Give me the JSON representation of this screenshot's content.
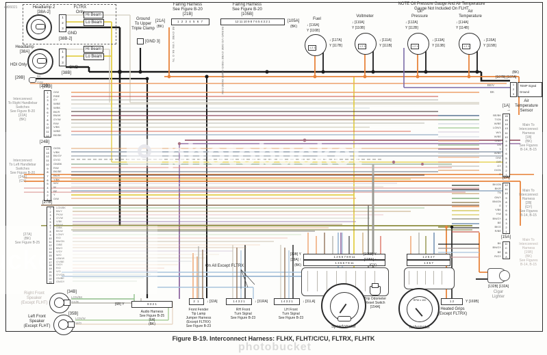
{
  "doc_code": "ed06021",
  "caption": "Figure B-19. Interconnect Harness: FLHX, FLHT/C/CU, FLTRX, FLHTK",
  "note": "NOTE Oil Pressure Gauge And Air Temperature\nGauge Not Included On FLHT",
  "watermark": {
    "brand": "photobucket",
    "partial_left": "photobucket",
    "partial_bottom": "photobucket"
  },
  "palette": {
    "wire_orange": "#e8833a",
    "wire_yellow": "#e8d44d",
    "wire_black": "#1a1a1a",
    "wire_violet": "#7a4b8f",
    "wire_maroon": "#8f4a5e",
    "wire_blue": "#5a7ea6",
    "wire_green": "#6a9e5f",
    "wire_tan": "#c9a878",
    "wire_gray": "#b0aea8"
  },
  "headlamps": {
    "h2": {
      "title": "Headlamp 2\n[38A-2]",
      "variant": "FLTRX\nOnly",
      "hi": "Hi Beam",
      "lo": "Lo Beam",
      "gnd": "GND",
      "gnd_conn": "[38B-2]",
      "pins": [
        "1",
        "2",
        "3"
      ],
      "w1": "W",
      "w2": "Y",
      "w3": "BK"
    },
    "h1": {
      "title": "Headlamp\n[38A]",
      "variant": "HDI Only",
      "hi": "Hi Beam",
      "lo": "Lo Beam",
      "gnd": "GND",
      "gnd_conn": "[38B]",
      "pins": [
        "1",
        "2",
        "3"
      ],
      "w1": "W",
      "w2": "Y",
      "w3": "BK"
    },
    "c29b": "[29B]",
    "c29b_w1": "BK",
    "c29b_w2": "O/W",
    "c22b_ref": "[22B]"
  },
  "ground_clamp": {
    "label": "Ground\nTo Upper\nTriple Clamp",
    "gnd": "[GND 3]"
  },
  "fairing21": {
    "title": "Fairing Harness\nSee Figure B-20\n[21B]",
    "mate": "[21A]",
    "mate_color": "(BK)",
    "pins": "1 2 3 4 5 6 7",
    "wires": [
      "BE",
      "GY/BE",
      "V",
      "BN",
      "BK",
      "O",
      "TN"
    ]
  },
  "fairing105": {
    "title": "Fairing Harness\nSee Figure B-20\n[105B]",
    "mate": "[105A]",
    "mate_color": "(BK)",
    "pins": "12 11 10 9 8 7 6 5 4 3 2 1",
    "wires": [
      "BK",
      "BN/O",
      "V/O",
      "O/BE",
      "GY/BE",
      "Y",
      "BE/O",
      "GN/BE",
      "BK",
      "BE",
      "O",
      "BN"
    ]
  },
  "gauges": {
    "pins": "1 2 3",
    "fuel": {
      "name": "Fuel",
      "a": "↓ [116A]",
      "b": "Y [116B]",
      "sub_a": "↓ [117A]",
      "sub_b": "Y [117B]"
    },
    "volt": {
      "name": "Voltmeter",
      "a": "↓ [110A]",
      "b": "Y [110B]",
      "sub_a": "↓ [111A]",
      "sub_b": "Y [111B]"
    },
    "oil": {
      "name": "Oil\nPressure",
      "a": "↓ [112A]",
      "b": "Y [112B]",
      "sub_a": "↓ [113A]",
      "sub_b": "Y [113B]"
    },
    "air": {
      "name": "Air\nTemperature",
      "a": "↓ [114A]",
      "b": "Y [114B]",
      "sub_a": "↓ [115A]",
      "sub_b": "Y [115B]"
    }
  },
  "temp_sensor": {
    "bk": "(BK)",
    "conns": "[107B]  [107A]",
    "rows": "TEMP Signal\nGround",
    "pins": [
      "1",
      "2",
      "3"
    ],
    "name": "Air\nTemperature\nSensor",
    "w1": "BE/V",
    "w2": "BK"
  },
  "right": {
    "c1": {
      "top": "[1A]",
      "pins": [
        "16",
        "15",
        "14",
        "13",
        "11",
        "10",
        "9",
        "8",
        "7",
        "6",
        "5",
        "4",
        "3",
        "2",
        "1"
      ],
      "wires": [
        "BE/BK",
        "T/GN",
        "W/BE",
        "LGN/V",
        "W/V",
        "W/BE",
        "O/BE",
        "GN",
        "V",
        "W/BK",
        "O/W",
        "O/R",
        "GY",
        "O/GN",
        "O"
      ],
      "desc": "Main To\nInterconnect\nHarness\n[1B]\n(BK)\nSee Figures\nB-14, B-15"
    },
    "c2": {
      "top": "[2A]",
      "pins": [
        "12",
        "11",
        "10",
        "9",
        "8",
        "7",
        "6",
        "5",
        "4",
        "3",
        "2",
        "1"
      ],
      "wires": [
        "BK/GN",
        "BK/R",
        "TN",
        "GN/Y",
        "BN/GN",
        "O",
        "Y/BK",
        "Y/W",
        "BN/GY",
        "BE",
        "BK/O",
        "R/BE"
      ],
      "desc": "Main To\nInterconnect\nHarness\n[2B]\n(GY)\nSee Figures\nB-14, B-15"
    },
    "c15": {
      "top": "[15A]",
      "pins": [
        "D",
        "C",
        "B",
        "A"
      ],
      "wires": [
        "BK",
        "BN/GY",
        "BE",
        "R/GY"
      ],
      "desc": "Main To\nInterconnect\nHarness\n[15B]\n(BK)\nSee Figures\nB-14, B-15"
    },
    "cigar": {
      "conns": "[132B]  [132A]",
      "name": "Cigar\nLighter"
    }
  },
  "left": {
    "c22": {
      "top": "[22B]",
      "pins": [
        "1",
        "2",
        "3",
        "4",
        "5",
        "6",
        "7",
        "8",
        "9",
        "10",
        "11",
        "12"
      ],
      "wires": [
        "O/W",
        "R/BE",
        "GY",
        "W/BE",
        "W/BK",
        "BK/R",
        "BN/W",
        "GY/W",
        "R/W",
        "V/BK",
        "W/BE",
        "BE/BK"
      ],
      "desc": "Interconnect\nTo Right Handlebar\nSwitches\nSee Figure B-20\n[22A]\n(BK)"
    },
    "c24": {
      "top": "[24B]",
      "pins": [
        "14",
        "13",
        "12",
        "11",
        "10",
        "9",
        "8",
        "7",
        "6",
        "5",
        "4",
        "3",
        "2",
        "1"
      ],
      "wires": [
        "O/GN",
        "V/BK",
        "BK/GY",
        "GY/O",
        "GN/BK",
        "R/W",
        "BK/BE",
        "BK/R",
        "Y/BK",
        "W/V",
        "W",
        "BE",
        "Y",
        "O/W"
      ],
      "desc": "Interconnect\nTo Left Handlebar\nSwitches\nSee Figure B-20\n[24A]\n(GY)"
    },
    "c27": {
      "top": "[27B]",
      "pins": [
        "1",
        "2",
        "3",
        "4",
        "5",
        "6",
        "7",
        "8",
        "9",
        "10",
        "11",
        "12",
        "13",
        "14",
        "15",
        "16",
        "17",
        "18",
        "19",
        "20",
        "21",
        "22",
        "23"
      ],
      "wires": [
        "LGN/BK",
        "BN/Y",
        "PK/W",
        "GY/W",
        "V/BK",
        "BN/W",
        "O/BK",
        "BK/W",
        "LGN/Y",
        "R/O",
        "BN/GN",
        "O/BE",
        "BN/O",
        "V/GY",
        "W/O",
        "LBN/W",
        "GY/BE",
        "O/GY",
        "R/O",
        "V/O",
        "GY/GN",
        "GN/BE",
        "GN/GY"
      ],
      "desc": "[27A]\n(BK)\nSee Figure B-25"
    }
  },
  "bottom": {
    "speaker_r": {
      "name": "Right Front\nSpeaker\n(Except FLHT)",
      "conn": "[34B]",
      "w1": "LGN/BK",
      "w2": "GY/R"
    },
    "speaker_l": {
      "name": "Left Front\nSpeaker\n(Except FLHT)",
      "conn": "[35B]",
      "w1": "LGN/W",
      "w2": "W/O"
    },
    "audio": {
      "conn": "[6B]  Y",
      "pins": "8          3 2 1",
      "desc": "Audio Harness\nSee Figure B-25\n[6A]\n(BK)"
    },
    "fender": {
      "pins": "2 1",
      "conn": "↓ [32A]",
      "desc": "Front Fender\nTip Lamp\nJumper Harness\n(Except FLTRX)\nSee Figure B-23"
    },
    "rh": {
      "pins": "1 4 3 2 1",
      "conn": "↓ [31RA]",
      "desc": "RH Front\nTurn Signal\nSee Figure B-23"
    },
    "lh": {
      "pins": "1 4 3 2 1",
      "conn": "↓ [31LA]",
      "desc": "LH Front\nTurn Signal\nSee Figure B-23"
    },
    "on_all": "On All Except FLTRX",
    "speedo": {
      "b": "[39B] Y",
      "a": "[39A] ↑",
      "color": "(BK)",
      "pins_b": "1 2   5 6 7 8   9 11",
      "pins_a": "1 3   5 6 7   9 11",
      "name": "Speedometer"
    },
    "trip": {
      "name": "Trip Odometer\nReset  Switch\n[154A]"
    },
    "tach": {
      "b": "[108B] Y",
      "a": "[108A] ↑",
      "color": "(GY)",
      "pins_b": "1 2   5 4 7",
      "pins_a": "1 3   5 7",
      "face": "RPM x 100",
      "name": "Tachometer"
    },
    "heated": {
      "pins": "1        2",
      "conn": "Y [169B]",
      "name": "Heated Grips\n(Except FLTRX)"
    }
  }
}
